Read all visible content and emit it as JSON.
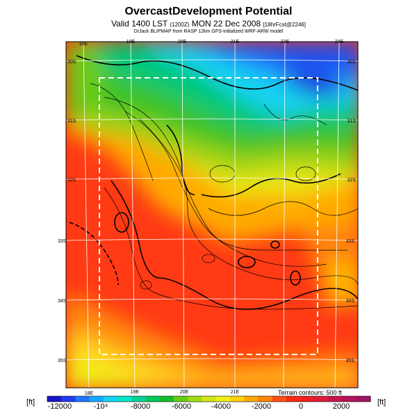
{
  "header": {
    "title": "OvercastDevelopment Potential",
    "subtitle_main": "Valid 1400 LST",
    "subtitle_code": "(1200Z)",
    "subtitle_date": "MON 22 Dec 2008",
    "subtitle_run": "[18hrFcst@2246]",
    "credit": "DrJack BLIPMAP from RASP 12km GFS-initialized WRF-ARW model"
  },
  "map": {
    "lon_labels_top": [
      "18E",
      "19E",
      "20E",
      "21E",
      "22E",
      "23E"
    ],
    "lon_labels_bottom": [
      "18E",
      "19E",
      "20E",
      "21E"
    ],
    "lat_labels_left": [
      "30S",
      "31S",
      "32S",
      "33S",
      "34S",
      "35S"
    ],
    "lat_labels_right": [
      "30S",
      "31S",
      "32S",
      "33S",
      "34S",
      "35S"
    ],
    "terrain_note": "Terrain contours: 500 ft"
  },
  "colorbar": {
    "unit_left": "[ft]",
    "unit_right": "[ft]",
    "labels": [
      "-12000",
      "-10⁴",
      "-8000",
      "-6000",
      "-4000",
      "-2000",
      "0",
      "2000"
    ],
    "colors": [
      "#1a14c8",
      "#1e3cf0",
      "#1e78ff",
      "#14aaff",
      "#14d2f0",
      "#00e6c8",
      "#00d296",
      "#00c85a",
      "#14be28",
      "#64cd14",
      "#a0dc14",
      "#d2e614",
      "#f0f014",
      "#ffd20a",
      "#ffaa00",
      "#ff820a",
      "#ff5014",
      "#ff2814",
      "#f01e1e",
      "#dc1e3c",
      "#c81450",
      "#b4145a",
      "#a01464"
    ]
  }
}
